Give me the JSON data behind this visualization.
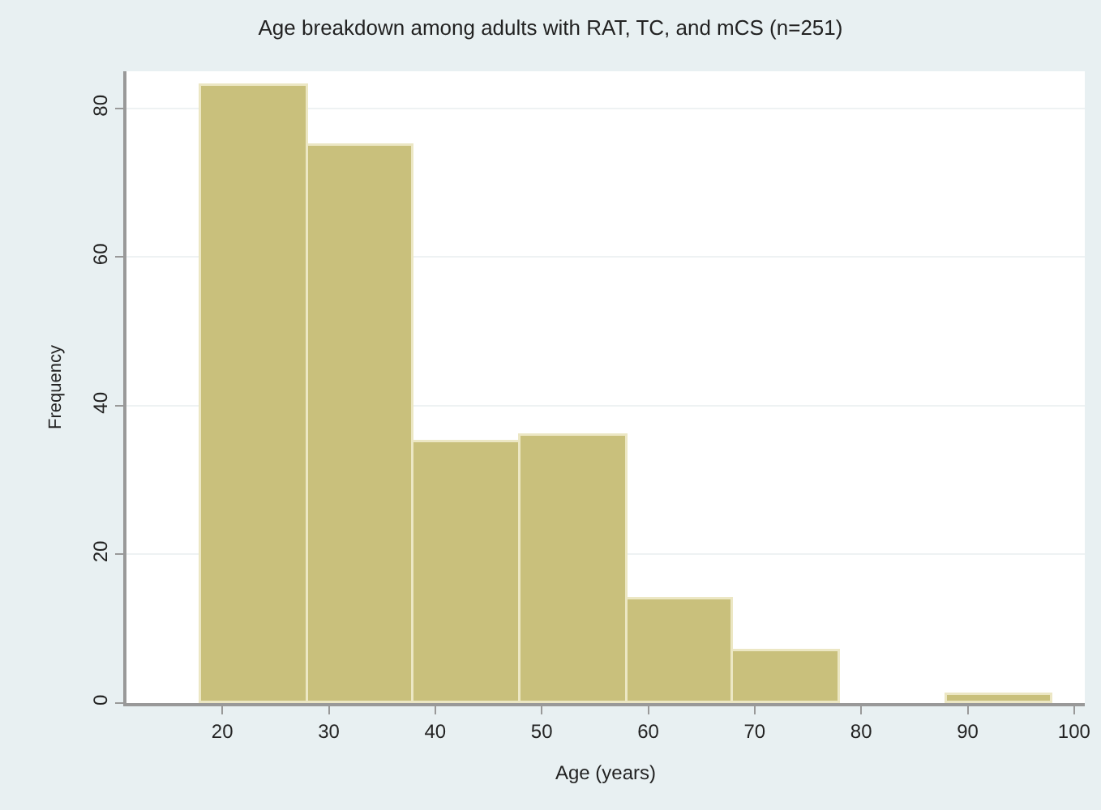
{
  "chart_data": {
    "type": "histogram",
    "title": "Age breakdown among adults with RAT, TC, and mCS (n=251)",
    "xlabel": "Age (years)",
    "ylabel": "Frequency",
    "bins": [
      18,
      28,
      38,
      48,
      58,
      68,
      78,
      88,
      98
    ],
    "values": [
      83,
      75,
      35,
      36,
      14,
      7,
      0,
      1
    ],
    "color": "#c9c07c",
    "xlim": [
      11,
      101
    ],
    "xticks": [
      20,
      30,
      40,
      50,
      60,
      70,
      80,
      90,
      100
    ],
    "ylim": [
      0,
      85
    ],
    "yticks": [
      0,
      20,
      40,
      60,
      80
    ],
    "grid": "y"
  }
}
